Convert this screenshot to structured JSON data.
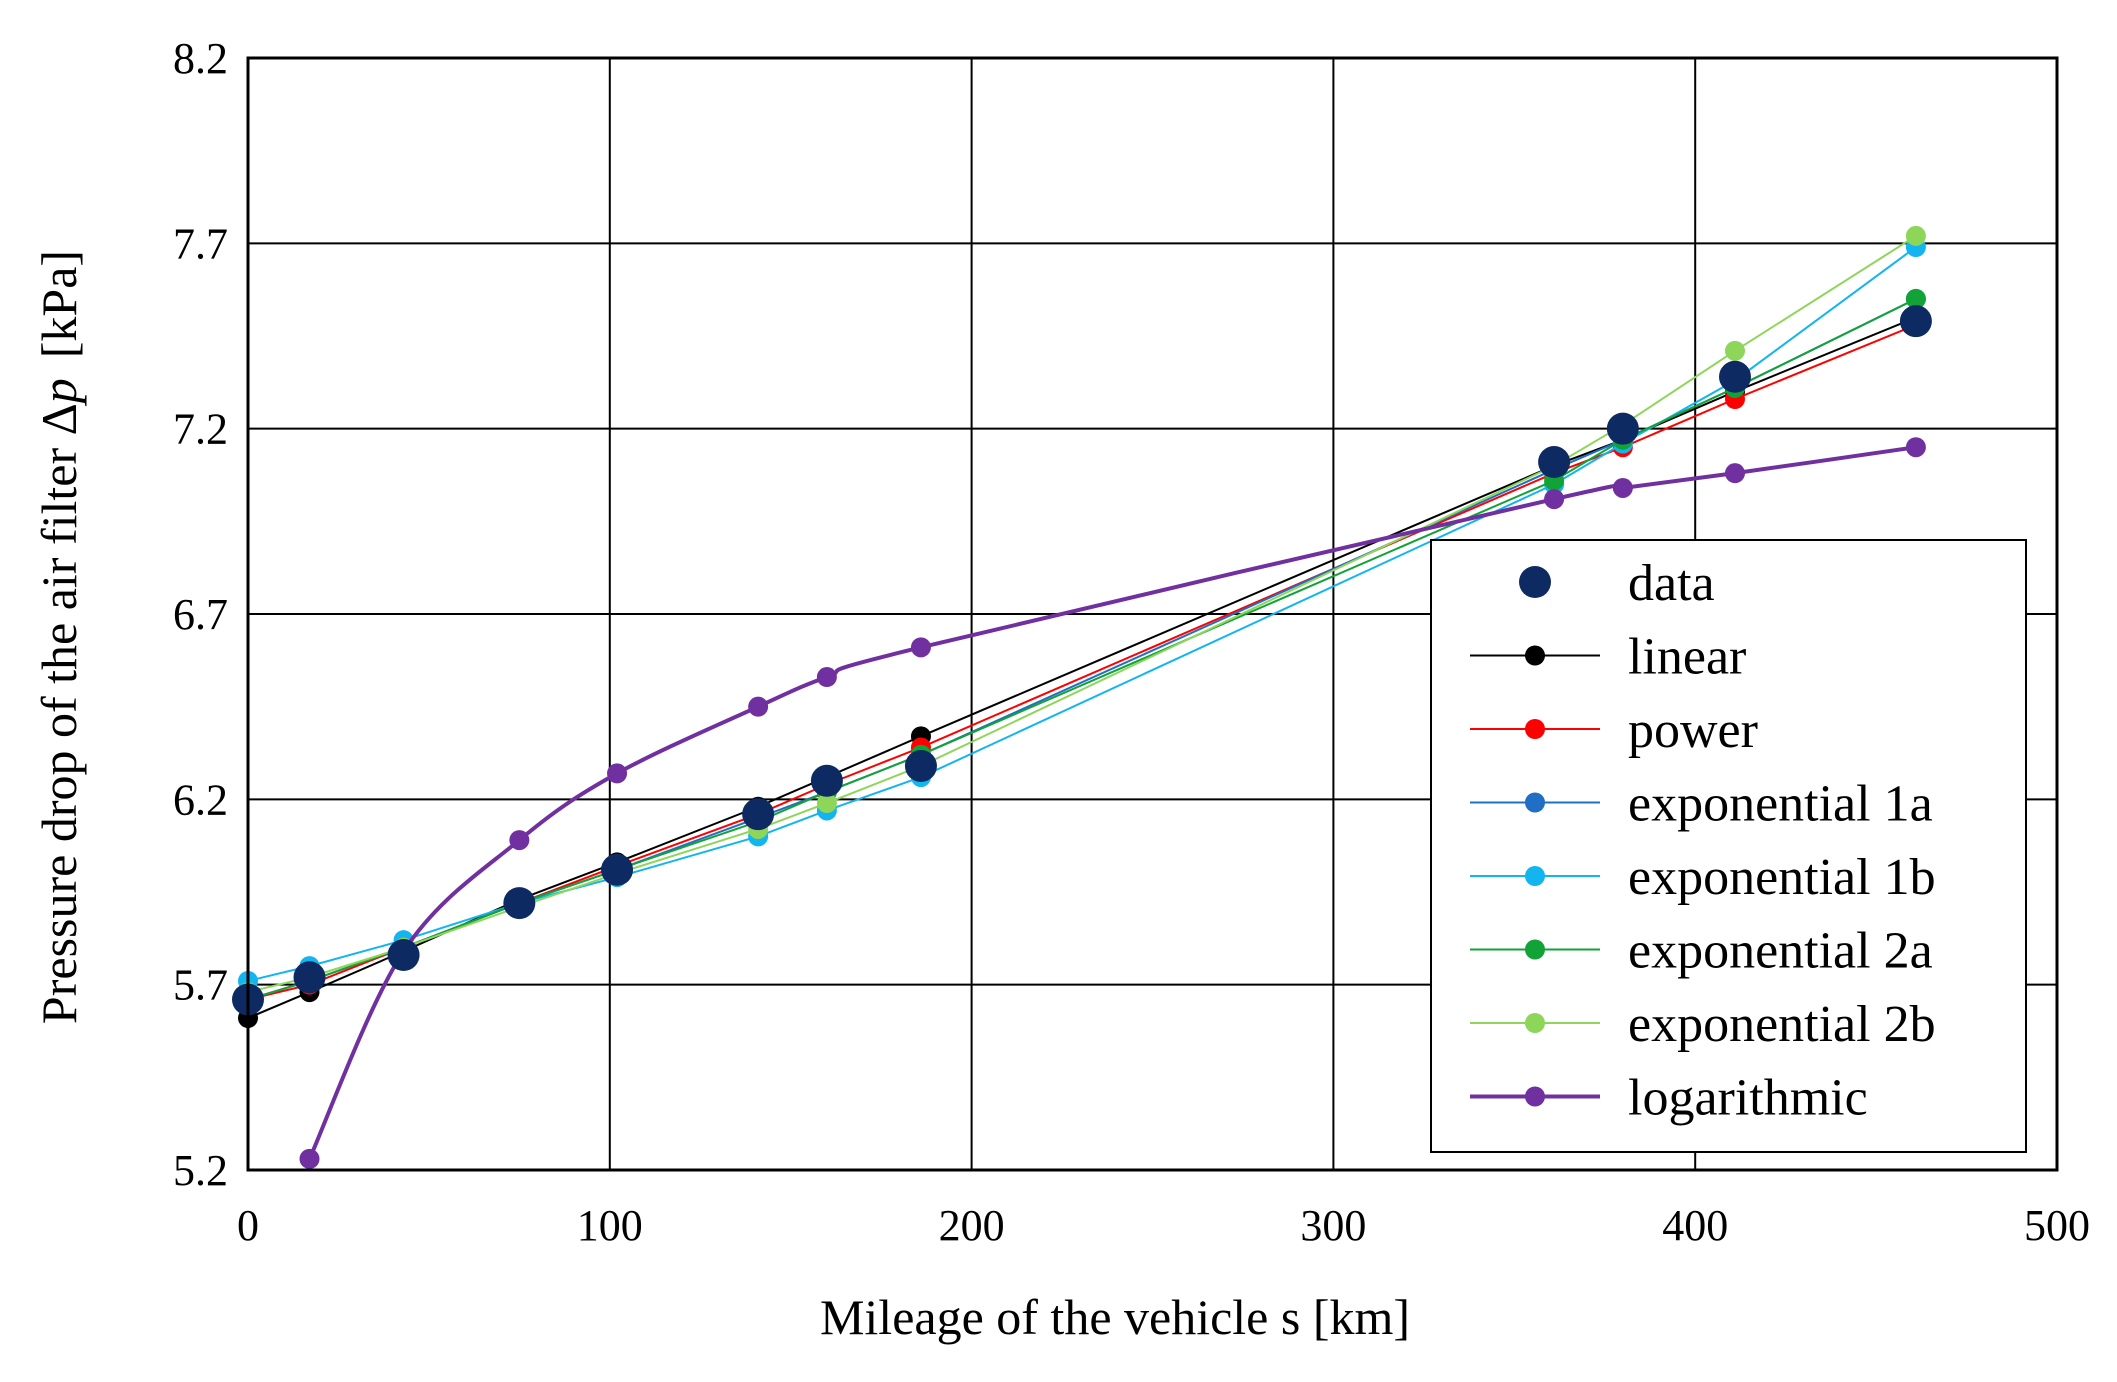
{
  "chart_data": {
    "type": "line",
    "title": "",
    "xlabel": "Mileage of the vehicle s [km]",
    "ylabel_prefix": "Pressure drop of the air filter ",
    "ylabel_symbol": "Δ",
    "ylabel_var": "p",
    "ylabel_unit": "[kPa]",
    "xlim": [
      0,
      500
    ],
    "ylim": [
      5.2,
      8.2
    ],
    "xticks": [
      0,
      100,
      200,
      300,
      400,
      500
    ],
    "yticks": [
      5.2,
      5.7,
      6.2,
      6.7,
      7.2,
      7.7,
      8.2
    ],
    "xtick_labels": [
      "0",
      "100",
      "200",
      "300",
      "400",
      "500"
    ],
    "ytick_labels": [
      "5.2",
      "5.7",
      "6.2",
      "6.7",
      "7.2",
      "7.7",
      "8.2"
    ],
    "grid": true,
    "legend_position": "lower-right",
    "x": [
      0,
      17,
      43,
      75,
      102,
      141,
      160,
      186,
      361,
      380,
      411,
      461
    ],
    "series": [
      {
        "name": "data",
        "color": "#0d2a63",
        "style": "markers",
        "values": [
          5.66,
          5.72,
          5.78,
          5.92,
          6.01,
          6.16,
          6.25,
          6.29,
          7.11,
          7.2,
          7.34,
          7.49
        ]
      },
      {
        "name": "linear",
        "color": "#000000",
        "style": "line",
        "values": [
          5.61,
          5.68,
          5.79,
          5.93,
          6.03,
          6.18,
          6.26,
          6.37,
          7.1,
          7.17,
          7.3,
          7.5
        ]
      },
      {
        "name": "power",
        "color": "#ff0000",
        "style": "line",
        "values": [
          5.66,
          5.7,
          5.8,
          5.92,
          6.02,
          6.16,
          6.24,
          6.34,
          7.08,
          7.15,
          7.28,
          7.48
        ]
      },
      {
        "name": "exponential 1a",
        "color": "#1f6fc5",
        "style": "line",
        "values": [
          5.66,
          5.71,
          5.8,
          5.92,
          6.01,
          6.15,
          6.22,
          6.32,
          7.09,
          7.17,
          7.31,
          7.55
        ]
      },
      {
        "name": "exponential 1b",
        "color": "#12b5f0",
        "style": "line",
        "values": [
          5.71,
          5.75,
          5.82,
          5.92,
          5.99,
          6.1,
          6.17,
          6.26,
          7.05,
          7.16,
          7.33,
          7.69
        ]
      },
      {
        "name": "exponential 2a",
        "color": "#12a338",
        "style": "line",
        "values": [
          5.66,
          5.71,
          5.8,
          5.92,
          6.01,
          6.14,
          6.22,
          6.32,
          7.06,
          7.17,
          7.31,
          7.55
        ]
      },
      {
        "name": "exponential 2b",
        "color": "#8ed65a",
        "style": "line",
        "values": [
          5.68,
          5.72,
          5.8,
          5.91,
          6.0,
          6.12,
          6.19,
          6.29,
          7.1,
          7.21,
          7.41,
          7.72
        ]
      },
      {
        "name": "logarithmic",
        "color": "#7030a0",
        "style": "line",
        "values": [
          null,
          5.23,
          5.79,
          6.09,
          6.27,
          6.45,
          6.53,
          6.61,
          7.01,
          7.04,
          7.08,
          7.15
        ]
      }
    ]
  }
}
